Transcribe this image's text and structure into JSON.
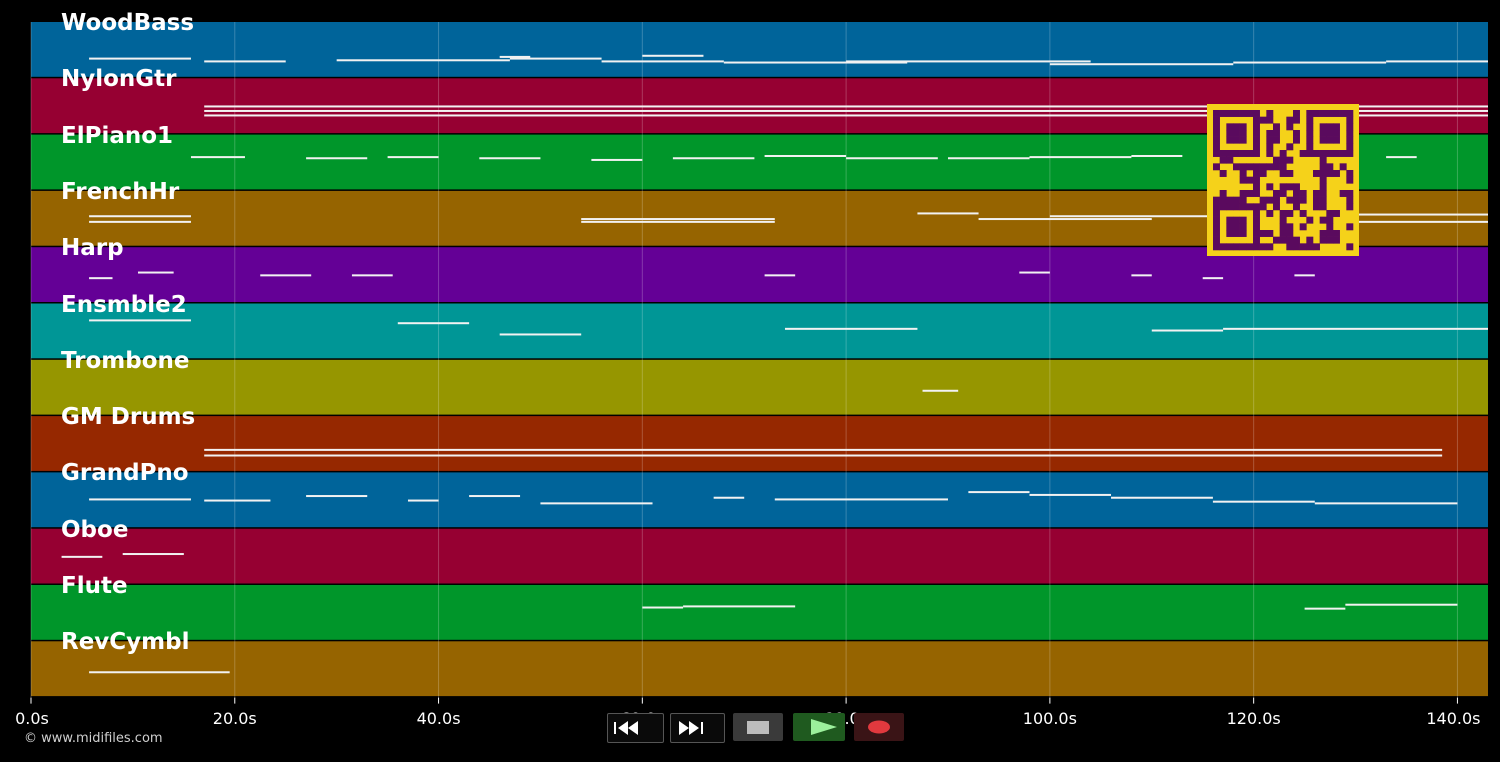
{
  "app": {
    "copyright": "© www.midifiles.com"
  },
  "tracks": [
    {
      "name": "WoodBass",
      "color": "#00649a"
    },
    {
      "name": "NylonGtr",
      "color": "#960032"
    },
    {
      "name": "ElPiano1",
      "color": "#00962a"
    },
    {
      "name": "FrenchHr",
      "color": "#966400"
    },
    {
      "name": "Harp",
      "color": "#640096"
    },
    {
      "name": "Ensmble2",
      "color": "#009696"
    },
    {
      "name": "Trombone",
      "color": "#969600"
    },
    {
      "name": "GM Drums",
      "color": "#962800"
    },
    {
      "name": "GrandPno",
      "color": "#00649a"
    },
    {
      "name": "Oboe",
      "color": "#960032"
    },
    {
      "name": "Flute",
      "color": "#00962a"
    },
    {
      "name": "RevCymbl",
      "color": "#966400"
    }
  ],
  "time_axis": {
    "min_s": 0,
    "max_s": 143,
    "ticks": [
      {
        "value": 0,
        "label": "0.0s"
      },
      {
        "value": 20,
        "label": "20.0s"
      },
      {
        "value": 40,
        "label": "40.0s"
      },
      {
        "value": 60,
        "label": "60.0s"
      },
      {
        "value": 80,
        "label": "80.0s"
      },
      {
        "value": 100,
        "label": "100.0s"
      },
      {
        "value": 120,
        "label": "120.0s"
      },
      {
        "value": 140,
        "label": "140.0s"
      }
    ]
  },
  "notes": [
    {
      "track": 0,
      "segments": [
        [
          5.7,
          15.7,
          0.65
        ],
        [
          17,
          25,
          0.7
        ],
        [
          30,
          47,
          0.68
        ],
        [
          46,
          49,
          0.62
        ],
        [
          47,
          56,
          0.65
        ],
        [
          56,
          68,
          0.7
        ],
        [
          60,
          66,
          0.6
        ],
        [
          68,
          86,
          0.72
        ],
        [
          80,
          104,
          0.7
        ],
        [
          100,
          118,
          0.75
        ],
        [
          118,
          133,
          0.72
        ],
        [
          133,
          143,
          0.7
        ]
      ]
    },
    {
      "track": 1,
      "segments": [
        [
          17,
          143,
          0.5
        ],
        [
          17,
          143,
          0.58
        ],
        [
          17,
          143,
          0.66
        ]
      ]
    },
    {
      "track": 2,
      "segments": [
        [
          15.7,
          21,
          0.4
        ],
        [
          27,
          33,
          0.42
        ],
        [
          35,
          40,
          0.4
        ],
        [
          44,
          50,
          0.42
        ],
        [
          55,
          60,
          0.45
        ],
        [
          63,
          71,
          0.42
        ],
        [
          72,
          80,
          0.38
        ],
        [
          80,
          89,
          0.42
        ],
        [
          90,
          98,
          0.42
        ],
        [
          98,
          108,
          0.4
        ],
        [
          108,
          113,
          0.38
        ],
        [
          120,
          130,
          0.42
        ],
        [
          133,
          136,
          0.4
        ]
      ]
    },
    {
      "track": 3,
      "segments": [
        [
          5.7,
          15.7,
          0.45
        ],
        [
          5.7,
          15.7,
          0.55
        ],
        [
          54,
          73,
          0.5
        ],
        [
          54,
          73,
          0.55
        ],
        [
          87,
          93,
          0.4
        ],
        [
          93,
          110,
          0.5
        ],
        [
          100,
          116,
          0.45
        ],
        [
          116,
          143,
          0.42
        ],
        [
          116,
          143,
          0.55
        ]
      ]
    },
    {
      "track": 4,
      "segments": [
        [
          5.7,
          8,
          0.55
        ],
        [
          10.5,
          14,
          0.45
        ],
        [
          22.5,
          27.5,
          0.5
        ],
        [
          31.5,
          35.5,
          0.5
        ],
        [
          72,
          75,
          0.5
        ],
        [
          97,
          100,
          0.45
        ],
        [
          108,
          110,
          0.5
        ],
        [
          115,
          117,
          0.55
        ],
        [
          124,
          126,
          0.5
        ]
      ]
    },
    {
      "track": 5,
      "segments": [
        [
          5.7,
          15.7,
          0.3
        ],
        [
          36,
          43,
          0.35
        ],
        [
          46,
          54,
          0.55
        ],
        [
          74,
          87,
          0.45
        ],
        [
          110,
          117,
          0.48
        ],
        [
          117,
          143,
          0.45
        ]
      ]
    },
    {
      "track": 6,
      "segments": [
        [
          87.5,
          91,
          0.55
        ]
      ]
    },
    {
      "track": 7,
      "segments": [
        [
          17,
          138.5,
          0.6
        ],
        [
          17,
          138.5,
          0.7
        ]
      ]
    },
    {
      "track": 8,
      "segments": [
        [
          5.7,
          15.7,
          0.48
        ],
        [
          17,
          23.5,
          0.5
        ],
        [
          27,
          33,
          0.42
        ],
        [
          37,
          40,
          0.5
        ],
        [
          43,
          48,
          0.42
        ],
        [
          50,
          61,
          0.55
        ],
        [
          67,
          70,
          0.45
        ],
        [
          73,
          90,
          0.48
        ],
        [
          92,
          98,
          0.35
        ],
        [
          98,
          106,
          0.4
        ],
        [
          106,
          116,
          0.45
        ],
        [
          116,
          126,
          0.52
        ],
        [
          126,
          140,
          0.55
        ]
      ]
    },
    {
      "track": 9,
      "segments": [
        [
          3,
          7,
          0.5
        ],
        [
          9,
          15,
          0.45
        ]
      ]
    },
    {
      "track": 10,
      "segments": [
        [
          60,
          64,
          0.4
        ],
        [
          64,
          75,
          0.38
        ],
        [
          125,
          129,
          0.42
        ],
        [
          129,
          140,
          0.35
        ]
      ]
    },
    {
      "track": 11,
      "segments": [
        [
          5.7,
          19.5,
          0.55
        ]
      ]
    }
  ],
  "controls": [
    {
      "name": "rewind-button",
      "icon": "rewind-icon"
    },
    {
      "name": "fast-forward-button",
      "icon": "fast-forward-icon"
    },
    {
      "name": "stop-button",
      "icon": "stop-icon"
    },
    {
      "name": "play-button",
      "icon": "play-icon",
      "color": "#3fae3f"
    },
    {
      "name": "record-button",
      "icon": "record-icon",
      "color": "#e0393e"
    }
  ],
  "overlay": {
    "name": "qr-code",
    "fg": "#5a0a5e",
    "bg": "#f5d21a"
  }
}
